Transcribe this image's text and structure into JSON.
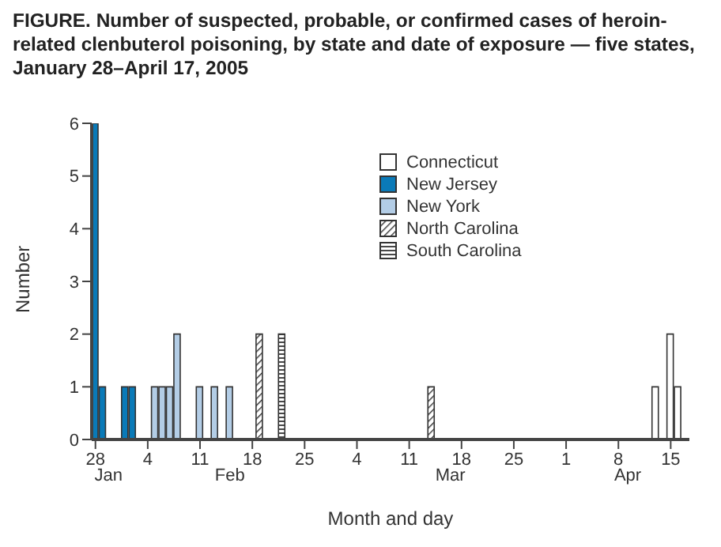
{
  "chart_data": {
    "type": "bar",
    "title": "FIGURE. Number of suspected, probable, or confirmed cases of heroin-related clenbuterol poisoning, by state and date of exposure — five states, January 28–April 17, 2005",
    "xlabel": "Month and day",
    "ylabel": "Number",
    "series": [
      {
        "name": "Connecticut",
        "color": "#ffffff",
        "x": [
          "2005-04-13",
          "2005-04-15",
          "2005-04-16"
        ],
        "values": [
          1,
          2,
          1
        ]
      },
      {
        "name": "New Jersey",
        "color": "#0a7ab8",
        "x": [
          "2005-01-28",
          "2005-01-29",
          "2005-02-01",
          "2005-02-02"
        ],
        "values": [
          6,
          1,
          1,
          1
        ]
      },
      {
        "name": "New York",
        "color": "#b3cde6",
        "x": [
          "2005-02-05",
          "2005-02-06",
          "2005-02-07",
          "2005-02-08",
          "2005-02-11",
          "2005-02-13",
          "2005-02-15"
        ],
        "values": [
          1,
          1,
          1,
          2,
          1,
          1,
          1
        ]
      },
      {
        "name": "North Carolina",
        "color": "#333333",
        "x": [
          "2005-02-19",
          "2005-03-14"
        ],
        "values": [
          2,
          1
        ]
      },
      {
        "name": "South Carolina",
        "color": "#333333",
        "x": [
          "2005-02-22"
        ],
        "values": [
          2
        ]
      }
    ],
    "xlim": [
      "2005-01-27T12:00",
      "2005-04-17T12:00"
    ],
    "xticks": [
      {
        "value": "2005-01-28",
        "label": "28"
      },
      {
        "value": "2005-02-04",
        "label": "4"
      },
      {
        "value": "2005-02-11",
        "label": "11"
      },
      {
        "value": "2005-02-18",
        "label": "18"
      },
      {
        "value": "2005-02-25",
        "label": "25"
      },
      {
        "value": "2005-03-04",
        "label": "4"
      },
      {
        "value": "2005-03-11",
        "label": "11"
      },
      {
        "value": "2005-03-18",
        "label": "18"
      },
      {
        "value": "2005-03-25",
        "label": "25"
      },
      {
        "value": "2005-04-01",
        "label": "1"
      },
      {
        "value": "2005-04-08",
        "label": "8"
      },
      {
        "value": "2005-04-15",
        "label": "15"
      }
    ],
    "ylim": [
      0,
      6
    ],
    "yticks": [
      0,
      1,
      2,
      3,
      4,
      5,
      6
    ],
    "annotations": [
      "Jan",
      "Feb",
      "Mar",
      "Apr"
    ],
    "grid": false,
    "legend": "top right"
  }
}
